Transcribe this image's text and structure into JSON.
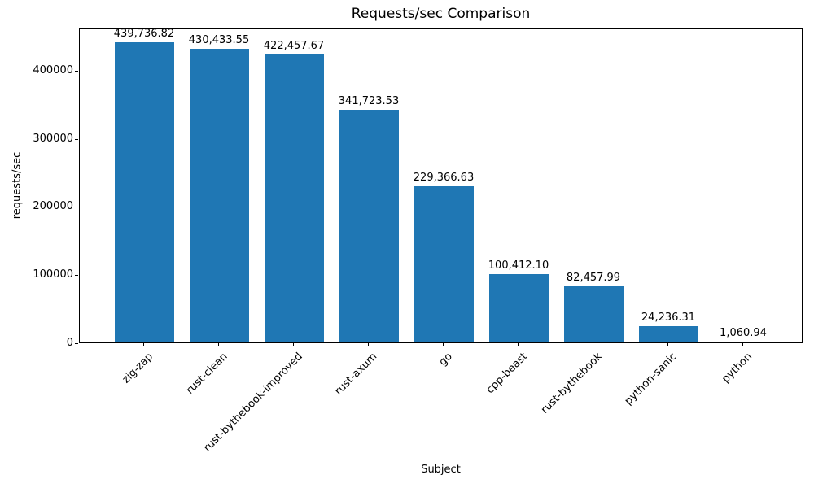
{
  "chart_data": {
    "type": "bar",
    "title": "Requests/sec Comparison",
    "xlabel": "Subject",
    "ylabel": "requests/sec",
    "categories": [
      "zig-zap",
      "rust-clean",
      "rust-bythebook-improved",
      "rust-axum",
      "go",
      "cpp-beast",
      "rust-bythebook",
      "python-sanic",
      "python"
    ],
    "values": [
      439736.82,
      430433.55,
      422457.67,
      341723.53,
      229366.63,
      100412.1,
      82457.99,
      24236.31,
      1060.94
    ],
    "value_labels": [
      "439,736.82",
      "430,433.55",
      "422,457.67",
      "341,723.53",
      "229,366.63",
      "100,412.10",
      "82,457.99",
      "24,236.31",
      "1,060.94"
    ],
    "yticks": [
      0,
      100000,
      200000,
      300000,
      400000
    ],
    "ytick_labels": [
      "0",
      "100000",
      "200000",
      "300000",
      "400000"
    ],
    "ylim": [
      0,
      461724
    ],
    "bar_color": "#1f77b4",
    "axis_color": "#000000",
    "grid": "off",
    "legend": "none",
    "xtick_rotation_deg": 45
  }
}
